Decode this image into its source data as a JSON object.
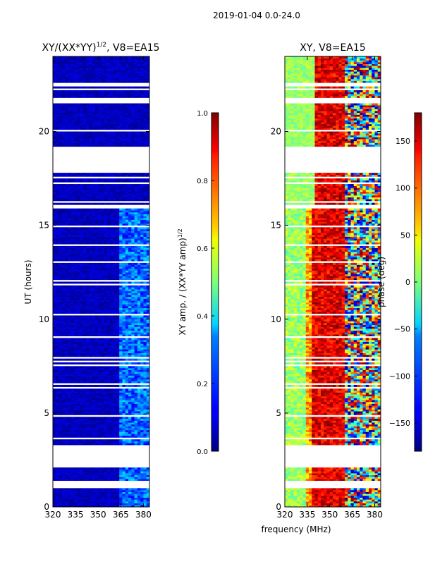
{
  "suptitle": "2019-01-04 0.0-24.0",
  "xlabel_shared": "frequency (MHz)",
  "chart_data": [
    {
      "type": "heatmap",
      "title": "XY/(XX*YY)",
      "title_exp": "1/2",
      "title_suffix": ", V8=EA15",
      "ylabel": "UT (hours)",
      "xlim": [
        320,
        384
      ],
      "ylim": [
        0,
        24
      ],
      "xticks": [
        320,
        335,
        350,
        365,
        380
      ],
      "yticks": [
        0,
        5,
        10,
        15,
        20
      ],
      "colormap": "jet",
      "colorbar": {
        "label": "XY amp. / (XX*YY amp)",
        "label_exp": "1/2",
        "range": [
          0.0,
          1.0
        ],
        "ticks": [
          "0.0",
          "0.2",
          "0.4",
          "0.6",
          "0.8",
          "1.0"
        ],
        "tick_values": [
          0.0,
          0.2,
          0.4,
          0.6,
          0.8,
          1.0
        ]
      },
      "data_gaps_hours": [
        [
          1.05,
          1.35
        ],
        [
          2.1,
          3.25
        ],
        [
          18.1,
          19.05
        ],
        [
          21.5,
          21.8
        ],
        [
          15.9,
          16.15
        ]
      ],
      "high_value_band_mhz": [
        363,
        382
      ]
    },
    {
      "type": "heatmap",
      "title": "XY, V8=EA15",
      "xlim": [
        320,
        384
      ],
      "ylim": [
        0,
        24
      ],
      "xticks": [
        320,
        335,
        350,
        365,
        380
      ],
      "yticks": [
        0,
        5,
        10,
        15,
        20
      ],
      "colormap": "jet",
      "colorbar": {
        "label": "phase (deg)",
        "range": [
          -180,
          180
        ],
        "ticks": [
          "150",
          "100",
          "50",
          "0",
          "−50",
          "−100",
          "−150"
        ],
        "tick_values": [
          150,
          100,
          50,
          0,
          -50,
          -100,
          -150
        ]
      },
      "data_gaps_hours": [
        [
          1.05,
          1.35
        ],
        [
          2.1,
          3.25
        ],
        [
          18.1,
          19.05
        ],
        [
          21.5,
          21.8
        ],
        [
          15.9,
          16.15
        ]
      ],
      "phase_profile_note": "phase ~120-180 deg near 340-360 MHz, ~0 deg near 320-335 MHz"
    }
  ]
}
